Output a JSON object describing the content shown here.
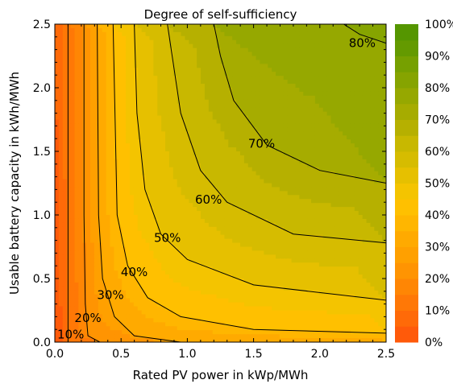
{
  "chart_data": {
    "type": "heatmap",
    "subtype": "filled-contour",
    "title": "Degree of self-sufficiency",
    "xlabel": "Rated PV power in kWp/MWh",
    "ylabel": "Usable battery capacity in kWh/MWh",
    "xlim": [
      0,
      2.5
    ],
    "ylim": [
      0,
      2.5
    ],
    "xticks": [
      "0.0",
      "0.5",
      "1.0",
      "1.5",
      "2.0",
      "2.5"
    ],
    "yticks": [
      "0.0",
      "0.5",
      "1.0",
      "1.5",
      "2.0",
      "2.5"
    ],
    "grid": false,
    "colorbar": {
      "labels": [
        "0%",
        "10%",
        "20%",
        "30%",
        "40%",
        "50%",
        "60%",
        "70%",
        "80%",
        "90%",
        "100%"
      ],
      "levels": [
        0,
        5,
        10,
        15,
        20,
        25,
        30,
        35,
        40,
        45,
        50,
        55,
        60,
        65,
        70,
        75,
        80,
        85,
        90,
        95,
        100
      ],
      "colors": [
        "#ff5a0a",
        "#ff6a08",
        "#ff7806",
        "#ff8604",
        "#ff9402",
        "#ffa000",
        "#ffaa00",
        "#ffb600",
        "#ffc000",
        "#f4c400",
        "#e6c000",
        "#d6bc00",
        "#c8b800",
        "#b6b000",
        "#a6ac00",
        "#96a800",
        "#86a400",
        "#76a000",
        "#649a00",
        "#559600"
      ]
    },
    "contour_lines": [
      {
        "label": "10%",
        "level": 10,
        "points": [
          [
            0.1,
            0.0
          ],
          [
            0.1,
            2.5
          ]
        ]
      },
      {
        "label": "20%",
        "level": 20,
        "points": [
          [
            0.34,
            0.0
          ],
          [
            0.25,
            0.05
          ],
          [
            0.23,
            0.3
          ],
          [
            0.22,
            1.0
          ],
          [
            0.22,
            2.5
          ]
        ]
      },
      {
        "label": "30%",
        "level": 30,
        "points": [
          [
            0.95,
            0.0
          ],
          [
            0.6,
            0.05
          ],
          [
            0.45,
            0.2
          ],
          [
            0.36,
            0.5
          ],
          [
            0.33,
            1.0
          ],
          [
            0.32,
            2.5
          ]
        ]
      },
      {
        "label": "40%",
        "level": 40,
        "points": [
          [
            2.5,
            0.07
          ],
          [
            1.5,
            0.1
          ],
          [
            0.95,
            0.2
          ],
          [
            0.7,
            0.35
          ],
          [
            0.55,
            0.6
          ],
          [
            0.47,
            1.0
          ],
          [
            0.44,
            2.5
          ]
        ]
      },
      {
        "label": "50%",
        "level": 50,
        "points": [
          [
            2.5,
            0.33
          ],
          [
            1.5,
            0.45
          ],
          [
            1.0,
            0.65
          ],
          [
            0.8,
            0.85
          ],
          [
            0.68,
            1.2
          ],
          [
            0.62,
            1.8
          ],
          [
            0.6,
            2.5
          ]
        ]
      },
      {
        "label": "60%",
        "level": 60,
        "points": [
          [
            2.5,
            0.78
          ],
          [
            1.8,
            0.85
          ],
          [
            1.3,
            1.1
          ],
          [
            1.1,
            1.35
          ],
          [
            0.95,
            1.8
          ],
          [
            0.85,
            2.5
          ]
        ]
      },
      {
        "label": "70%",
        "level": 70,
        "points": [
          [
            2.5,
            1.25
          ],
          [
            2.0,
            1.35
          ],
          [
            1.6,
            1.55
          ],
          [
            1.35,
            1.9
          ],
          [
            1.25,
            2.25
          ],
          [
            1.2,
            2.5
          ]
        ]
      },
      {
        "label": "80%",
        "level": 80,
        "points": [
          [
            2.5,
            2.35
          ],
          [
            2.3,
            2.42
          ],
          [
            2.18,
            2.5
          ]
        ]
      }
    ],
    "contour_labels": [
      {
        "text": "10%",
        "x": 0.12,
        "y": 0.06
      },
      {
        "text": "20%",
        "x": 0.25,
        "y": 0.19
      },
      {
        "text": "30%",
        "x": 0.42,
        "y": 0.37
      },
      {
        "text": "40%",
        "x": 0.6,
        "y": 0.55
      },
      {
        "text": "50%",
        "x": 0.85,
        "y": 0.82
      },
      {
        "text": "60%",
        "x": 1.16,
        "y": 1.12
      },
      {
        "text": "70%",
        "x": 1.56,
        "y": 1.56
      },
      {
        "text": "80%",
        "x": 2.32,
        "y": 2.35
      }
    ]
  }
}
